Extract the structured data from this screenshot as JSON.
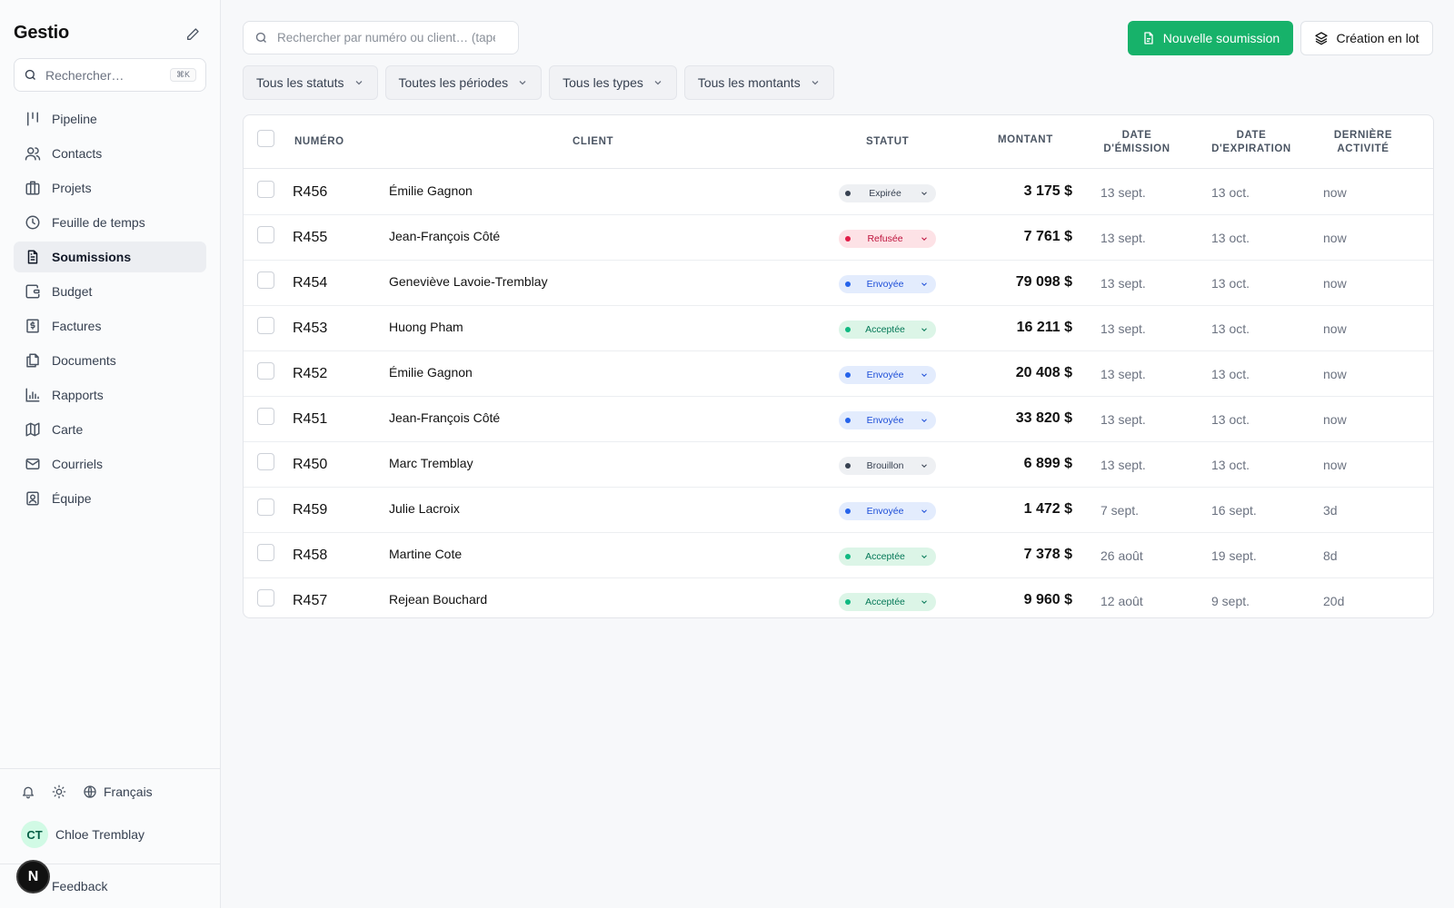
{
  "app": {
    "brand": "Gestio"
  },
  "sidebar": {
    "search_placeholder": "Rechercher…",
    "search_shortcut": "⌘K",
    "items": [
      {
        "label": "Pipeline",
        "icon": "pipeline-icon"
      },
      {
        "label": "Contacts",
        "icon": "users-icon"
      },
      {
        "label": "Projets",
        "icon": "briefcase-icon"
      },
      {
        "label": "Feuille de temps",
        "icon": "clock-icon"
      },
      {
        "label": "Soumissions",
        "icon": "file-text-icon",
        "active": true
      },
      {
        "label": "Budget",
        "icon": "wallet-icon"
      },
      {
        "label": "Factures",
        "icon": "invoice-icon"
      },
      {
        "label": "Documents",
        "icon": "documents-icon"
      },
      {
        "label": "Rapports",
        "icon": "bar-chart-icon"
      },
      {
        "label": "Carte",
        "icon": "map-icon"
      },
      {
        "label": "Courriels",
        "icon": "mail-icon"
      },
      {
        "label": "Équipe",
        "icon": "contact-card-icon"
      }
    ],
    "language": "Français",
    "user": {
      "initials": "CT",
      "name": "Chloe Tremblay"
    },
    "feedback": "Feedback",
    "badge": "N"
  },
  "toolbar": {
    "search_placeholder": "Rechercher par numéro ou client… (tapez /)",
    "new_button": "Nouvelle soumission",
    "batch_button": "Création en lot"
  },
  "filters": [
    "Tous les statuts",
    "Toutes les périodes",
    "Tous les types",
    "Tous les montants"
  ],
  "table": {
    "headers": {
      "number": "Numéro",
      "client": "Client",
      "status": "Statut",
      "amount": "Montant",
      "issue_date_1": "Date",
      "issue_date_2": "d'émission",
      "expiry_date_1": "Date",
      "expiry_date_2": "d'expiration",
      "activity_1": "Dernière",
      "activity_2": "activité"
    },
    "rows": [
      {
        "number": "R456",
        "client": "Émilie Gagnon",
        "status": "Expirée",
        "status_kind": "expired",
        "amount": "3 175 $",
        "issued": "13 sept.",
        "expires": "13 oct.",
        "activity": "now"
      },
      {
        "number": "R455",
        "client": "Jean-François Côté",
        "status": "Refusée",
        "status_kind": "refused",
        "amount": "7 761 $",
        "issued": "13 sept.",
        "expires": "13 oct.",
        "activity": "now"
      },
      {
        "number": "R454",
        "client": "Geneviève Lavoie-Tremblay",
        "status": "Envoyée",
        "status_kind": "sent",
        "amount": "79 098 $",
        "issued": "13 sept.",
        "expires": "13 oct.",
        "activity": "now"
      },
      {
        "number": "R453",
        "client": "Huong Pham",
        "status": "Acceptée",
        "status_kind": "accepted",
        "amount": "16 211 $",
        "issued": "13 sept.",
        "expires": "13 oct.",
        "activity": "now"
      },
      {
        "number": "R452",
        "client": "Émilie Gagnon",
        "status": "Envoyée",
        "status_kind": "sent",
        "amount": "20 408 $",
        "issued": "13 sept.",
        "expires": "13 oct.",
        "activity": "now"
      },
      {
        "number": "R451",
        "client": "Jean-François Côté",
        "status": "Envoyée",
        "status_kind": "sent",
        "amount": "33 820 $",
        "issued": "13 sept.",
        "expires": "13 oct.",
        "activity": "now"
      },
      {
        "number": "R450",
        "client": "Marc Tremblay",
        "status": "Brouillon",
        "status_kind": "draft",
        "amount": "6 899 $",
        "issued": "13 sept.",
        "expires": "13 oct.",
        "activity": "now"
      },
      {
        "number": "R459",
        "client": "Julie Lacroix",
        "status": "Envoyée",
        "status_kind": "sent",
        "amount": "1 472 $",
        "issued": "7 sept.",
        "expires": "16 sept.",
        "activity": "3d"
      },
      {
        "number": "R458",
        "client": "Martine Cote",
        "status": "Acceptée",
        "status_kind": "accepted",
        "amount": "7 378 $",
        "issued": "26 août",
        "expires": "19 sept.",
        "activity": "8d"
      },
      {
        "number": "R457",
        "client": "Rejean Bouchard",
        "status": "Acceptée",
        "status_kind": "accepted",
        "amount": "9 960 $",
        "issued": "12 août",
        "expires": "9 sept.",
        "activity": "20d"
      }
    ]
  },
  "colors": {
    "accent": "#17b26a",
    "sidebar_active": "#eceef2"
  }
}
